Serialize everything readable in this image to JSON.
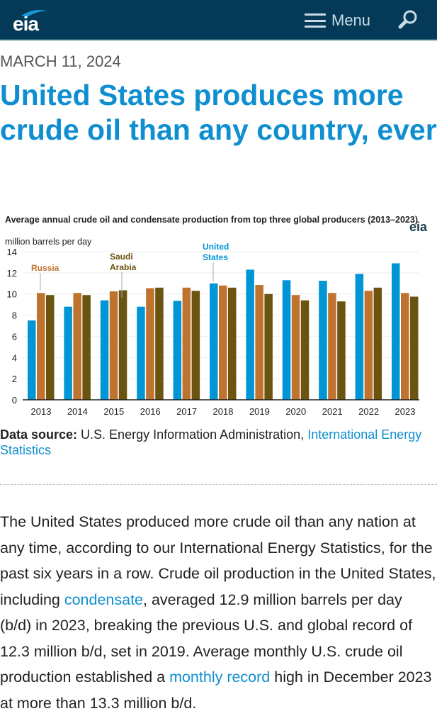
{
  "header": {
    "logo": "eia",
    "menu_label": "Menu",
    "icons": [
      "hamburger-icon",
      "search-icon"
    ]
  },
  "article": {
    "date": "MARCH 11, 2024",
    "title": "United States produces more crude oil than any country, ever"
  },
  "chart_data": {
    "type": "bar",
    "title": "Average annual crude oil and condensate production from top three global producers (2013–2023)",
    "ylabel": "million barrels per day",
    "logo": "eia",
    "ylim": [
      0,
      14
    ],
    "yticks": [
      "0",
      "2",
      "4",
      "6",
      "8",
      "10",
      "12",
      "14"
    ],
    "grid": true,
    "categories": [
      "2013",
      "2014",
      "2015",
      "2016",
      "2017",
      "2018",
      "2019",
      "2020",
      "2021",
      "2022",
      "2023"
    ],
    "series": [
      {
        "name": "United States",
        "color": "#0096d6",
        "values": [
          7.5,
          8.8,
          9.4,
          8.8,
          9.35,
          11.0,
          12.3,
          11.3,
          11.25,
          11.9,
          12.9
        ]
      },
      {
        "name": "Russia",
        "color": "#c0732f",
        "values": [
          10.1,
          10.1,
          10.25,
          10.55,
          10.6,
          10.8,
          10.85,
          9.9,
          10.1,
          10.3,
          10.1
        ]
      },
      {
        "name": "Saudi Arabia",
        "color": "#6b5410",
        "values": [
          9.9,
          9.9,
          10.35,
          10.6,
          10.3,
          10.6,
          10.0,
          9.4,
          9.3,
          10.6,
          9.75
        ]
      }
    ],
    "labels": {
      "russia": "Russia",
      "saudi": [
        "Saudi",
        "Arabia"
      ],
      "us": [
        "United",
        "States"
      ]
    }
  },
  "source": {
    "label": "Data source:",
    "text": " U.S. Energy Information Administration, ",
    "link": "International Energy Statistics"
  },
  "body": {
    "p1": "The United States produced more crude oil than any nation at any time, according to our International Energy Statistics, for the past six years in a row. Crude oil production in the United States, including ",
    "link1": "condensate",
    "p2": ", averaged 12.9 million barrels per day (b/d) in 2023, breaking the previous U.S. and global record of 12.3 million b/d, set in 2019. Average monthly U.S. crude oil production established a ",
    "link2": "monthly record",
    "p3": " high in December 2023 at more than 13.3 million b/d."
  }
}
